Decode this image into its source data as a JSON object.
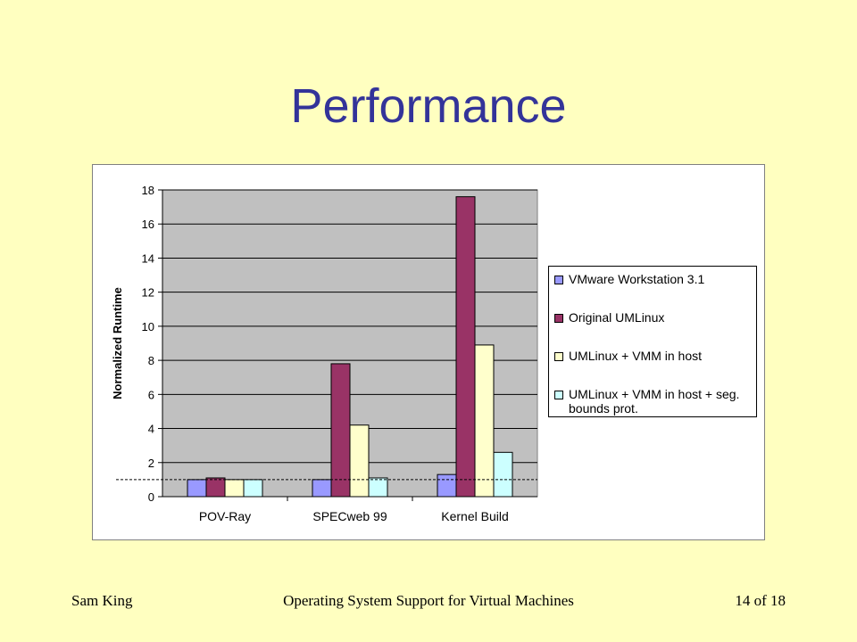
{
  "slide": {
    "title": "Performance",
    "footer_left": "Sam King",
    "footer_center": "Operating System Support for Virtual Machines",
    "footer_right": "14 of 18"
  },
  "colors": {
    "background": "#FFFFC0",
    "title": "#333399",
    "plot_area": "#C0C0C0"
  },
  "chart_data": {
    "type": "bar",
    "ylabel": "Normalized Runtime",
    "ylim": [
      0,
      18
    ],
    "yticks": [
      0,
      2,
      4,
      6,
      8,
      10,
      12,
      14,
      16,
      18
    ],
    "categories": [
      "POV-Ray",
      "SPECweb 99",
      "Kernel Build"
    ],
    "reference_line": 1,
    "grid": true,
    "legend_position": "right",
    "series": [
      {
        "name": "VMware Workstation 3.1",
        "color": "#9999FF",
        "values": [
          1.0,
          1.0,
          1.3
        ]
      },
      {
        "name": "Original UMLinux",
        "color": "#993366",
        "values": [
          1.1,
          7.8,
          17.6
        ]
      },
      {
        "name": "UMLinux + VMM in host",
        "color": "#FFFFCC",
        "values": [
          1.0,
          4.2,
          8.9
        ]
      },
      {
        "name": "UMLinux + VMM in host + seg. bounds prot.",
        "color": "#CCFFFF",
        "values": [
          1.0,
          1.1,
          2.6
        ]
      }
    ]
  }
}
